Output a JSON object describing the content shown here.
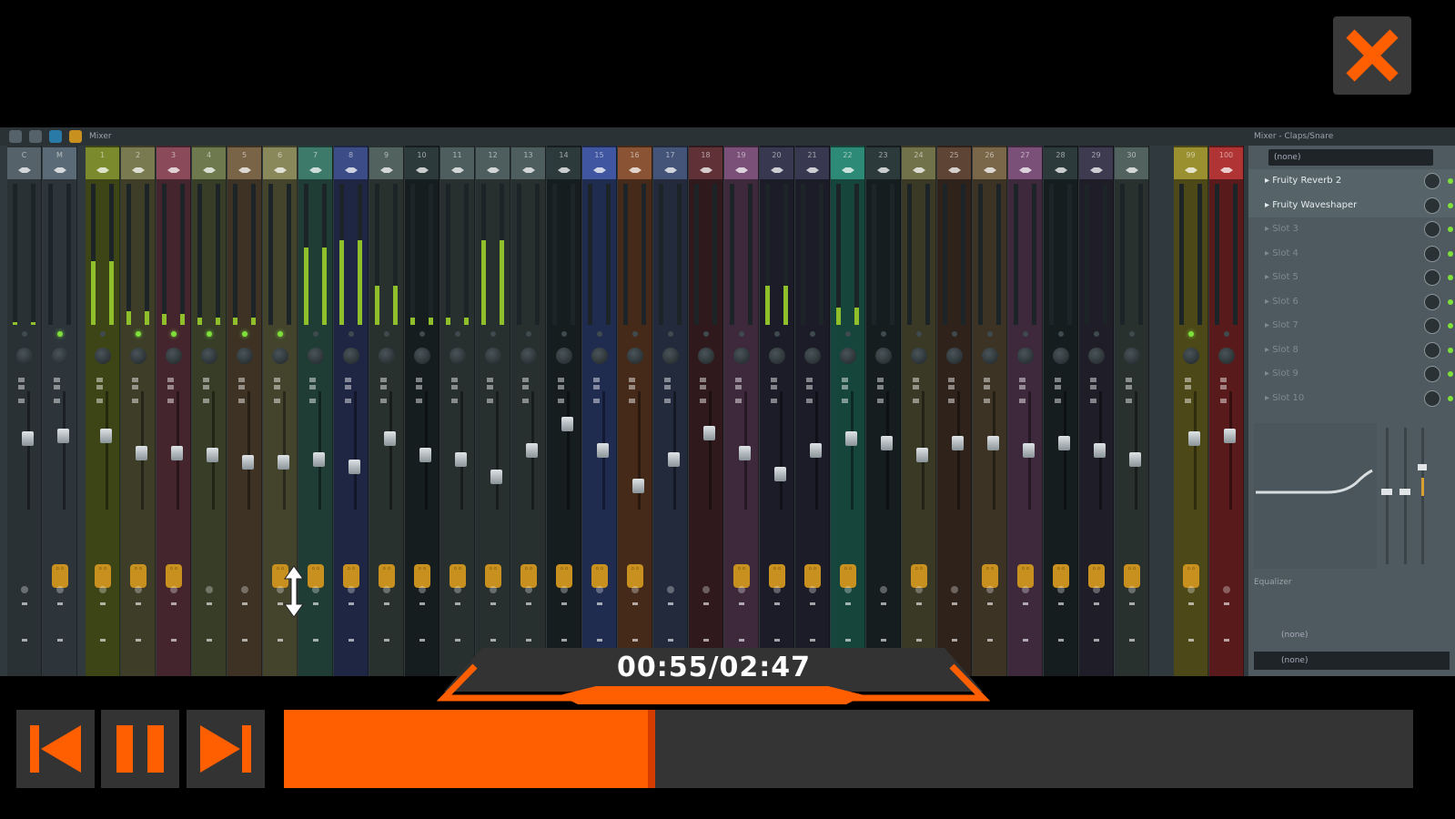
{
  "player": {
    "current_time": "00:55",
    "total_time": "02:47",
    "time_display": "00:55/02:47",
    "progress_fraction": 0.329,
    "accent_color": "#ff5f00",
    "controls": [
      {
        "name": "previous-button",
        "icon": "skip-previous-icon"
      },
      {
        "name": "pause-button",
        "icon": "pause-icon"
      },
      {
        "name": "next-button",
        "icon": "skip-next-icon"
      }
    ],
    "close_icon": "close-x-icon"
  },
  "mixer": {
    "toolbar_title": "Mixer",
    "channels": [
      {
        "label": "C",
        "color": "#55626a",
        "level": 0.02,
        "volume": 0.6,
        "led": false,
        "link": false
      },
      {
        "label": "M",
        "color": "#5a6a76",
        "level": 0,
        "volume": 0.62,
        "led": true,
        "link": true
      },
      {
        "label": "1",
        "color": "#7a8a2c",
        "level": 0.45,
        "volume": 0.62,
        "led": false,
        "link": true
      },
      {
        "label": "2",
        "color": "#7a7a50",
        "level": 0.1,
        "volume": 0.48,
        "led": true,
        "link": true
      },
      {
        "label": "3",
        "color": "#8a4a5a",
        "level": 0.08,
        "volume": 0.48,
        "led": true,
        "link": true
      },
      {
        "label": "4",
        "color": "#6e7a4e",
        "level": 0.05,
        "volume": 0.46,
        "led": true,
        "link": false
      },
      {
        "label": "5",
        "color": "#7a6448",
        "level": 0.05,
        "volume": 0.4,
        "led": true,
        "link": false
      },
      {
        "label": "6",
        "color": "#88885a",
        "level": 0,
        "volume": 0.4,
        "led": true,
        "link": true
      },
      {
        "label": "7",
        "color": "#3e7a6a",
        "level": 0.55,
        "volume": 0.42,
        "led": false,
        "link": true
      },
      {
        "label": "8",
        "color": "#3c4c86",
        "level": 0.6,
        "volume": 0.36,
        "led": false,
        "link": true
      },
      {
        "label": "9",
        "color": "#52625e",
        "level": 0.28,
        "volume": 0.6,
        "led": false,
        "link": true
      },
      {
        "label": "10",
        "color": "#2c3a3c",
        "level": 0.05,
        "volume": 0.46,
        "led": false,
        "link": true
      },
      {
        "label": "11",
        "color": "#4e5e5e",
        "level": 0.05,
        "volume": 0.42,
        "led": false,
        "link": true
      },
      {
        "label": "12",
        "color": "#4e5e5e",
        "level": 0.6,
        "volume": 0.28,
        "led": false,
        "link": true
      },
      {
        "label": "13",
        "color": "#4e5e5e",
        "level": 0,
        "volume": 0.5,
        "led": false,
        "link": true
      },
      {
        "label": "14",
        "color": "#2c3a3c",
        "level": 0,
        "volume": 0.72,
        "led": false,
        "link": true
      },
      {
        "label": "15",
        "color": "#4056a0",
        "level": 0,
        "volume": 0.5,
        "led": false,
        "link": true
      },
      {
        "label": "16",
        "color": "#8a5434",
        "level": 0,
        "volume": 0.2,
        "led": false,
        "link": true
      },
      {
        "label": "17",
        "color": "#445478",
        "level": 0,
        "volume": 0.42,
        "led": false,
        "link": false
      },
      {
        "label": "18",
        "color": "#603238",
        "level": 0,
        "volume": 0.65,
        "led": false,
        "link": false
      },
      {
        "label": "19",
        "color": "#7a5078",
        "level": 0,
        "volume": 0.48,
        "led": false,
        "link": true
      },
      {
        "label": "20",
        "color": "#383850",
        "level": 0.28,
        "volume": 0.3,
        "led": false,
        "link": true
      },
      {
        "label": "21",
        "color": "#383850",
        "level": 0,
        "volume": 0.5,
        "led": false,
        "link": true
      },
      {
        "label": "22",
        "color": "#2c8a76",
        "level": 0.12,
        "volume": 0.6,
        "led": false,
        "link": true
      },
      {
        "label": "23",
        "color": "#2c3a3c",
        "level": 0,
        "volume": 0.56,
        "led": false,
        "link": false
      },
      {
        "label": "24",
        "color": "#72724a",
        "level": 0,
        "volume": 0.46,
        "led": false,
        "link": true
      },
      {
        "label": "25",
        "color": "#5e4434",
        "level": 0,
        "volume": 0.56,
        "led": false,
        "link": false
      },
      {
        "label": "26",
        "color": "#7a6648",
        "level": 0,
        "volume": 0.56,
        "led": false,
        "link": true
      },
      {
        "label": "27",
        "color": "#7a5078",
        "level": 0,
        "volume": 0.5,
        "led": false,
        "link": true
      },
      {
        "label": "28",
        "color": "#2c3a3c",
        "level": 0,
        "volume": 0.56,
        "led": false,
        "link": true
      },
      {
        "label": "29",
        "color": "#3e3a50",
        "level": 0,
        "volume": 0.5,
        "led": false,
        "link": true
      },
      {
        "label": "30",
        "color": "#52625e",
        "level": 0,
        "volume": 0.42,
        "led": false,
        "link": true
      },
      {
        "label": "99",
        "color": "#9a9030",
        "level": 0,
        "volume": 0.6,
        "led": true,
        "link": true
      },
      {
        "label": "100",
        "color": "#b03434",
        "level": 0,
        "volume": 0.62,
        "led": false,
        "link": false
      }
    ]
  },
  "panel": {
    "title": "Mixer - Claps/Snare",
    "input": "(none)",
    "slots": [
      {
        "label": "Fruity Reverb 2",
        "used": true
      },
      {
        "label": "Fruity Waveshaper",
        "used": true
      },
      {
        "label": "Slot 3",
        "used": false
      },
      {
        "label": "Slot 4",
        "used": false
      },
      {
        "label": "Slot 5",
        "used": false
      },
      {
        "label": "Slot 6",
        "used": false
      },
      {
        "label": "Slot 7",
        "used": false
      },
      {
        "label": "Slot 8",
        "used": false
      },
      {
        "label": "Slot 9",
        "used": false
      },
      {
        "label": "Slot 10",
        "used": false
      }
    ],
    "eq_label": "Equalizer",
    "output_1": "(none)",
    "output_2": "(none)"
  }
}
